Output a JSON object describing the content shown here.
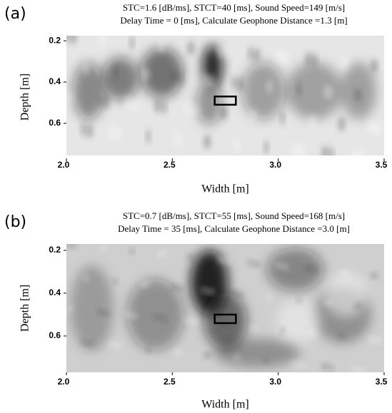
{
  "chart_data": [
    {
      "type": "image",
      "label": "(a)",
      "title": "STC=1.6 [dB/ms], STCT=40 [ms], Sound Speed=149 [m/s]",
      "subtitle": "Delay Time = 0 [ms], Calculate Geophone Distance =1.3 [m]",
      "xlabel": "Width [m]",
      "ylabel": "Depth [m]",
      "xlim": [
        2.0,
        3.5
      ],
      "xticks": [
        {
          "value": 2.0,
          "label": "2.0"
        },
        {
          "value": 2.5,
          "label": "2.5"
        },
        {
          "value": 3.0,
          "label": "3.0"
        },
        {
          "value": 3.5,
          "label": "3.5"
        }
      ],
      "ylim": [
        0.175,
        0.77
      ],
      "y_inverted": true,
      "yticks": [
        {
          "value": 0.2,
          "label": "0.2"
        },
        {
          "value": 0.4,
          "label": "0.4"
        },
        {
          "value": 0.6,
          "label": "0.6"
        }
      ],
      "box": {
        "x": [
          2.7,
          2.8
        ],
        "y": [
          0.47,
          0.51
        ]
      }
    },
    {
      "type": "image",
      "label": "(b)",
      "title": "STC=0.7 [dB/ms], STCT=55 [ms], Sound Speed=168 [m/s]",
      "subtitle": "Delay Time = 35 [ms], Calculate Geophone Distance =3.0 [m]",
      "xlabel": "Width [m]",
      "ylabel": "Depth [m]",
      "xlim": [
        2.0,
        3.5
      ],
      "xticks": [
        {
          "value": 2.0,
          "label": "2.0"
        },
        {
          "value": 2.5,
          "label": "2.5"
        },
        {
          "value": 3.0,
          "label": "3.0"
        },
        {
          "value": 3.5,
          "label": "3.5"
        }
      ],
      "ylim": [
        0.17,
        0.77
      ],
      "y_inverted": true,
      "yticks": [
        {
          "value": 0.2,
          "label": "0.2"
        },
        {
          "value": 0.4,
          "label": "0.4"
        },
        {
          "value": 0.6,
          "label": "0.6"
        }
      ],
      "box": {
        "x": [
          2.7,
          2.8
        ],
        "y": [
          0.5,
          0.54
        ]
      }
    }
  ]
}
